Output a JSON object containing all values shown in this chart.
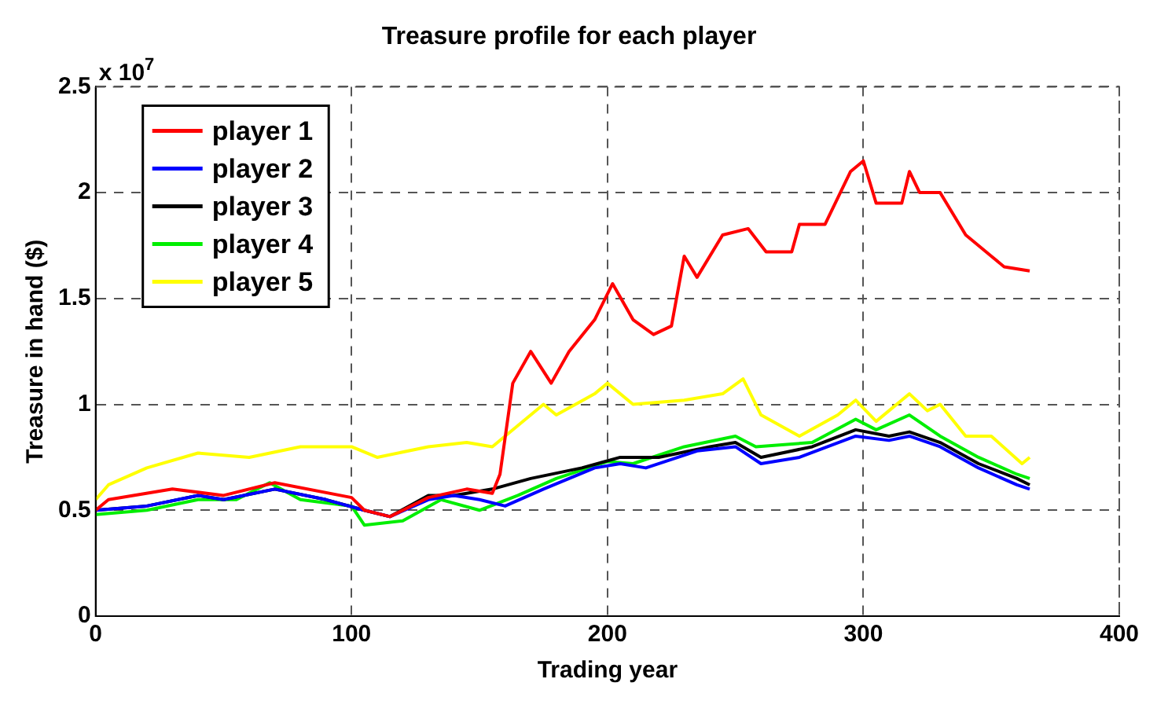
{
  "chart_data": {
    "type": "line",
    "title": "Treasure profile for each player",
    "xlabel": "Trading year",
    "ylabel": "Treasure in hand ($)",
    "annotations": [
      "x 10$^{7}$"
    ],
    "xlim": [
      0,
      400
    ],
    "xticks": [
      0,
      100,
      200,
      300,
      400
    ],
    "ylim": [
      0,
      2.5
    ],
    "yticks": [
      0,
      0.5,
      1,
      1.5,
      2,
      2.5
    ],
    "grid": true,
    "legend": "top left",
    "line_style": "solid",
    "series": [
      {
        "name": "player 1",
        "color": "#ff0000",
        "x": [
          0,
          5,
          30,
          50,
          70,
          100,
          105,
          115,
          130,
          145,
          155,
          158,
          163,
          170,
          178,
          185,
          195,
          202,
          210,
          218,
          225,
          230,
          235,
          245,
          255,
          262,
          272,
          275,
          285,
          295,
          300,
          305,
          315,
          318,
          322,
          330,
          340,
          350,
          355,
          365
        ],
        "values": [
          0.5,
          0.55,
          0.6,
          0.57,
          0.63,
          0.56,
          0.5,
          0.47,
          0.56,
          0.6,
          0.58,
          0.67,
          1.1,
          1.25,
          1.1,
          1.25,
          1.4,
          1.57,
          1.4,
          1.33,
          1.37,
          1.7,
          1.6,
          1.8,
          1.83,
          1.72,
          1.72,
          1.85,
          1.85,
          2.1,
          2.15,
          1.95,
          1.95,
          2.1,
          2.0,
          2.0,
          1.8,
          1.7,
          1.65,
          1.63
        ]
      },
      {
        "name": "player 2",
        "color": "#0000ff",
        "x": [
          0,
          20,
          40,
          50,
          70,
          90,
          105,
          115,
          130,
          140,
          150,
          160,
          175,
          195,
          205,
          215,
          235,
          250,
          260,
          275,
          297,
          310,
          318,
          330,
          345,
          360,
          365
        ],
        "values": [
          0.5,
          0.52,
          0.57,
          0.55,
          0.6,
          0.55,
          0.5,
          0.47,
          0.55,
          0.57,
          0.55,
          0.52,
          0.6,
          0.7,
          0.72,
          0.7,
          0.78,
          0.8,
          0.72,
          0.75,
          0.85,
          0.83,
          0.85,
          0.8,
          0.7,
          0.62,
          0.6
        ]
      },
      {
        "name": "player 3",
        "color": "#000000",
        "x": [
          0,
          20,
          40,
          50,
          70,
          90,
          105,
          115,
          130,
          140,
          155,
          170,
          190,
          205,
          220,
          240,
          250,
          260,
          280,
          297,
          310,
          318,
          330,
          345,
          360,
          365
        ],
        "values": [
          0.5,
          0.52,
          0.57,
          0.55,
          0.6,
          0.55,
          0.5,
          0.47,
          0.57,
          0.57,
          0.6,
          0.65,
          0.7,
          0.75,
          0.75,
          0.8,
          0.82,
          0.75,
          0.8,
          0.88,
          0.85,
          0.87,
          0.82,
          0.72,
          0.65,
          0.62
        ]
      },
      {
        "name": "player 4",
        "color": "#00ee00",
        "x": [
          0,
          20,
          40,
          55,
          68,
          80,
          100,
          105,
          120,
          135,
          150,
          165,
          180,
          200,
          210,
          230,
          250,
          258,
          280,
          297,
          305,
          318,
          330,
          345,
          360,
          365
        ],
        "values": [
          0.48,
          0.5,
          0.55,
          0.55,
          0.63,
          0.55,
          0.52,
          0.43,
          0.45,
          0.55,
          0.5,
          0.57,
          0.65,
          0.73,
          0.72,
          0.8,
          0.85,
          0.8,
          0.82,
          0.93,
          0.88,
          0.95,
          0.85,
          0.75,
          0.67,
          0.65
        ]
      },
      {
        "name": "player 5",
        "color": "#ffff00",
        "x": [
          0,
          5,
          20,
          40,
          60,
          80,
          100,
          110,
          130,
          145,
          155,
          165,
          175,
          180,
          195,
          200,
          210,
          230,
          245,
          253,
          260,
          275,
          290,
          297,
          305,
          318,
          325,
          330,
          340,
          350,
          362,
          365
        ],
        "values": [
          0.55,
          0.62,
          0.7,
          0.77,
          0.75,
          0.8,
          0.8,
          0.75,
          0.8,
          0.82,
          0.8,
          0.9,
          1.0,
          0.95,
          1.05,
          1.1,
          1.0,
          1.02,
          1.05,
          1.12,
          0.95,
          0.85,
          0.95,
          1.02,
          0.92,
          1.05,
          0.97,
          1.0,
          0.85,
          0.85,
          0.72,
          0.75
        ]
      }
    ]
  }
}
